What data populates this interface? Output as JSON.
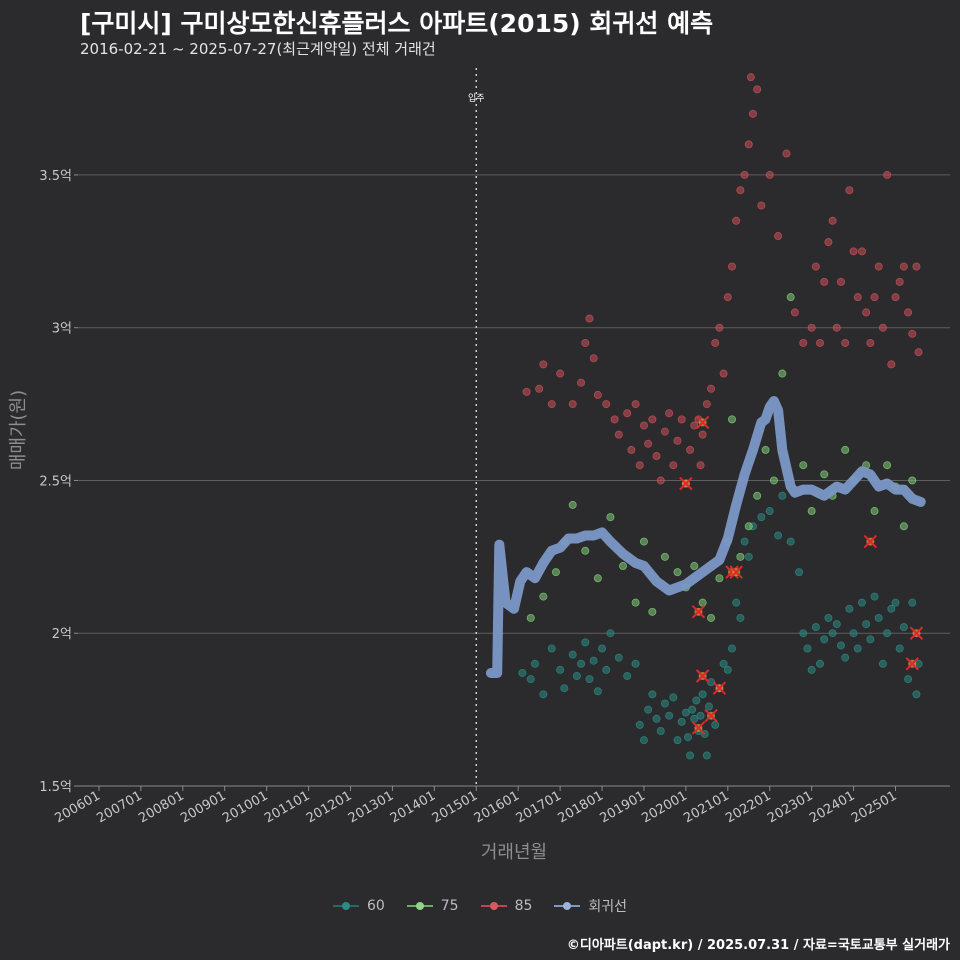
{
  "title": "[구미시] 구미상모한신휴플러스 아파트(2015) 회귀선 예측",
  "subtitle": "2016-02-21 ~ 2025-07-27(최근계약일) 전체 거래건",
  "caption": "©디아파트(dapt.kr) / 2025.07.31 / 자료=국토교통부 실거래가",
  "chart_data": {
    "type": "scatter",
    "xlabel": "거래년월",
    "ylabel": "매매가(원)",
    "x_ticks": [
      "200601",
      "200701",
      "200801",
      "200901",
      "201001",
      "201101",
      "201201",
      "201301",
      "201401",
      "201501",
      "201601",
      "201701",
      "201801",
      "201901",
      "202001",
      "202101",
      "202201",
      "202301",
      "202401",
      "202501"
    ],
    "y_ticks": [
      1.5,
      2,
      2.5,
      3,
      3.5
    ],
    "y_tick_labels": [
      "1.5억",
      "2억",
      "2.5억",
      "3억",
      "3.5억"
    ],
    "ylim": [
      1.5,
      3.85
    ],
    "xlim": [
      2005.5,
      2026.3
    ],
    "grid": "horizontal",
    "legend_position": "bottom",
    "annotation": {
      "label": "입주",
      "x": 2015.0
    },
    "colors": {
      "60": "#1e6e68",
      "75": "#5fb35a",
      "85": "#a83e45",
      "regression": "#7b98c7",
      "highlight": "#e0282c"
    },
    "series": [
      {
        "name": "60",
        "points": [
          [
            2016.1,
            1.87
          ],
          [
            2016.3,
            1.85
          ],
          [
            2016.4,
            1.9
          ],
          [
            2016.6,
            1.8
          ],
          [
            2016.8,
            1.95
          ],
          [
            2017.0,
            1.88
          ],
          [
            2017.1,
            1.82
          ],
          [
            2017.3,
            1.93
          ],
          [
            2017.4,
            1.86
          ],
          [
            2017.5,
            1.9
          ],
          [
            2017.6,
            1.97
          ],
          [
            2017.7,
            1.85
          ],
          [
            2017.8,
            1.91
          ],
          [
            2017.9,
            1.81
          ],
          [
            2018.0,
            1.95
          ],
          [
            2018.1,
            1.88
          ],
          [
            2018.2,
            2.0
          ],
          [
            2018.4,
            1.92
          ],
          [
            2018.6,
            1.86
          ],
          [
            2018.8,
            1.9
          ],
          [
            2018.9,
            1.7
          ],
          [
            2019.0,
            1.65
          ],
          [
            2019.1,
            1.75
          ],
          [
            2019.2,
            1.8
          ],
          [
            2019.3,
            1.72
          ],
          [
            2019.4,
            1.68
          ],
          [
            2019.5,
            1.77
          ],
          [
            2019.6,
            1.73
          ],
          [
            2019.7,
            1.79
          ],
          [
            2019.8,
            1.65
          ],
          [
            2019.9,
            1.71
          ],
          [
            2020.0,
            1.74
          ],
          [
            2020.05,
            1.66
          ],
          [
            2020.1,
            1.6
          ],
          [
            2020.15,
            1.75
          ],
          [
            2020.2,
            1.72
          ],
          [
            2020.25,
            1.78
          ],
          [
            2020.3,
            1.68
          ],
          [
            2020.35,
            1.73
          ],
          [
            2020.4,
            1.8
          ],
          [
            2020.45,
            1.67
          ],
          [
            2020.5,
            1.6
          ],
          [
            2020.55,
            1.76
          ],
          [
            2020.6,
            1.84
          ],
          [
            2020.7,
            1.7
          ],
          [
            2020.8,
            1.82
          ],
          [
            2020.9,
            1.9
          ],
          [
            2021.0,
            1.88
          ],
          [
            2021.1,
            1.95
          ],
          [
            2021.2,
            2.1
          ],
          [
            2021.3,
            2.05
          ],
          [
            2021.4,
            2.3
          ],
          [
            2021.5,
            2.25
          ],
          [
            2021.6,
            2.35
          ],
          [
            2021.8,
            2.38
          ],
          [
            2022.0,
            2.4
          ],
          [
            2022.2,
            2.32
          ],
          [
            2022.3,
            2.45
          ],
          [
            2022.5,
            2.3
          ],
          [
            2022.7,
            2.2
          ],
          [
            2022.8,
            2.0
          ],
          [
            2022.9,
            1.95
          ],
          [
            2023.0,
            1.88
          ],
          [
            2023.1,
            2.02
          ],
          [
            2023.2,
            1.9
          ],
          [
            2023.3,
            1.98
          ],
          [
            2023.4,
            2.05
          ],
          [
            2023.5,
            2.0
          ],
          [
            2023.6,
            2.03
          ],
          [
            2023.7,
            1.96
          ],
          [
            2023.8,
            1.92
          ],
          [
            2023.9,
            2.08
          ],
          [
            2024.0,
            2.0
          ],
          [
            2024.1,
            1.95
          ],
          [
            2024.2,
            2.1
          ],
          [
            2024.3,
            2.03
          ],
          [
            2024.4,
            1.98
          ],
          [
            2024.5,
            2.12
          ],
          [
            2024.6,
            2.05
          ],
          [
            2024.7,
            1.9
          ],
          [
            2024.8,
            2.0
          ],
          [
            2024.9,
            2.08
          ],
          [
            2025.0,
            2.1
          ],
          [
            2025.1,
            1.95
          ],
          [
            2025.2,
            2.02
          ],
          [
            2025.3,
            1.85
          ],
          [
            2025.4,
            2.1
          ],
          [
            2025.5,
            1.8
          ],
          [
            2025.55,
            1.9
          ]
        ]
      },
      {
        "name": "75",
        "points": [
          [
            2016.3,
            2.05
          ],
          [
            2016.6,
            2.12
          ],
          [
            2016.9,
            2.2
          ],
          [
            2017.1,
            2.3
          ],
          [
            2017.3,
            2.42
          ],
          [
            2017.6,
            2.27
          ],
          [
            2017.9,
            2.18
          ],
          [
            2018.2,
            2.38
          ],
          [
            2018.5,
            2.22
          ],
          [
            2018.8,
            2.1
          ],
          [
            2019.0,
            2.3
          ],
          [
            2019.2,
            2.07
          ],
          [
            2019.5,
            2.25
          ],
          [
            2019.8,
            2.2
          ],
          [
            2020.0,
            2.15
          ],
          [
            2020.2,
            2.22
          ],
          [
            2020.4,
            2.1
          ],
          [
            2020.6,
            2.05
          ],
          [
            2020.8,
            2.18
          ],
          [
            2021.0,
            2.3
          ],
          [
            2021.1,
            2.7
          ],
          [
            2021.3,
            2.25
          ],
          [
            2021.5,
            2.35
          ],
          [
            2021.7,
            2.45
          ],
          [
            2021.9,
            2.6
          ],
          [
            2022.1,
            2.5
          ],
          [
            2022.3,
            2.85
          ],
          [
            2022.5,
            3.1
          ],
          [
            2022.8,
            2.55
          ],
          [
            2023.0,
            2.4
          ],
          [
            2023.3,
            2.52
          ],
          [
            2023.5,
            2.45
          ],
          [
            2023.8,
            2.6
          ],
          [
            2024.0,
            2.5
          ],
          [
            2024.3,
            2.55
          ],
          [
            2024.5,
            2.4
          ],
          [
            2024.8,
            2.55
          ],
          [
            2025.0,
            2.48
          ],
          [
            2025.2,
            2.35
          ],
          [
            2025.4,
            2.5
          ]
        ]
      },
      {
        "name": "85",
        "points": [
          [
            2016.2,
            2.79
          ],
          [
            2016.5,
            2.8
          ],
          [
            2016.6,
            2.88
          ],
          [
            2016.8,
            2.75
          ],
          [
            2017.0,
            2.85
          ],
          [
            2017.3,
            2.75
          ],
          [
            2017.5,
            2.82
          ],
          [
            2017.6,
            2.95
          ],
          [
            2017.7,
            3.03
          ],
          [
            2017.8,
            2.9
          ],
          [
            2017.9,
            2.78
          ],
          [
            2018.1,
            2.75
          ],
          [
            2018.3,
            2.7
          ],
          [
            2018.4,
            2.65
          ],
          [
            2018.6,
            2.72
          ],
          [
            2018.7,
            2.6
          ],
          [
            2018.8,
            2.75
          ],
          [
            2018.9,
            2.55
          ],
          [
            2019.0,
            2.68
          ],
          [
            2019.1,
            2.62
          ],
          [
            2019.2,
            2.7
          ],
          [
            2019.3,
            2.58
          ],
          [
            2019.4,
            2.5
          ],
          [
            2019.5,
            2.66
          ],
          [
            2019.6,
            2.72
          ],
          [
            2019.7,
            2.55
          ],
          [
            2019.8,
            2.63
          ],
          [
            2019.9,
            2.7
          ],
          [
            2020.0,
            2.49
          ],
          [
            2020.1,
            2.6
          ],
          [
            2020.2,
            2.68
          ],
          [
            2020.3,
            2.7
          ],
          [
            2020.35,
            2.55
          ],
          [
            2020.4,
            2.65
          ],
          [
            2020.5,
            2.75
          ],
          [
            2020.6,
            2.8
          ],
          [
            2020.7,
            2.95
          ],
          [
            2020.8,
            3.0
          ],
          [
            2020.9,
            2.85
          ],
          [
            2021.0,
            3.1
          ],
          [
            2021.1,
            3.2
          ],
          [
            2021.2,
            3.35
          ],
          [
            2021.3,
            3.45
          ],
          [
            2021.4,
            3.5
          ],
          [
            2021.5,
            3.6
          ],
          [
            2021.55,
            3.82
          ],
          [
            2021.6,
            3.7
          ],
          [
            2021.7,
            3.78
          ],
          [
            2021.8,
            3.4
          ],
          [
            2022.0,
            3.5
          ],
          [
            2022.2,
            3.3
          ],
          [
            2022.4,
            3.57
          ],
          [
            2022.6,
            3.05
          ],
          [
            2022.8,
            2.95
          ],
          [
            2023.0,
            3.0
          ],
          [
            2023.1,
            3.2
          ],
          [
            2023.2,
            2.95
          ],
          [
            2023.3,
            3.15
          ],
          [
            2023.4,
            3.28
          ],
          [
            2023.5,
            3.35
          ],
          [
            2023.6,
            3.0
          ],
          [
            2023.7,
            3.15
          ],
          [
            2023.8,
            2.95
          ],
          [
            2023.9,
            3.45
          ],
          [
            2024.0,
            3.25
          ],
          [
            2024.1,
            3.1
          ],
          [
            2024.2,
            3.25
          ],
          [
            2024.3,
            3.05
          ],
          [
            2024.4,
            2.95
          ],
          [
            2024.5,
            3.1
          ],
          [
            2024.6,
            3.2
          ],
          [
            2024.7,
            3.0
          ],
          [
            2024.8,
            3.5
          ],
          [
            2024.9,
            2.88
          ],
          [
            2025.0,
            3.1
          ],
          [
            2025.1,
            3.15
          ],
          [
            2025.2,
            3.2
          ],
          [
            2025.3,
            3.05
          ],
          [
            2025.4,
            2.98
          ],
          [
            2025.5,
            3.2
          ],
          [
            2025.55,
            2.92
          ]
        ]
      }
    ],
    "highlights": [
      [
        2020.0,
        2.49
      ],
      [
        2020.4,
        2.69
      ],
      [
        2020.3,
        2.07
      ],
      [
        2020.4,
        1.86
      ],
      [
        2020.6,
        1.73
      ],
      [
        2020.8,
        1.82
      ],
      [
        2021.1,
        2.2
      ],
      [
        2021.2,
        2.2
      ],
      [
        2024.4,
        2.3
      ],
      [
        2025.5,
        2.0
      ],
      [
        2025.4,
        1.9
      ],
      [
        2020.3,
        1.69
      ]
    ],
    "regression": {
      "name": "회귀선",
      "x": [
        2015.35,
        2015.5,
        2015.55,
        2015.7,
        2015.9,
        2016.05,
        2016.2,
        2016.4,
        2016.6,
        2016.8,
        2017.0,
        2017.2,
        2017.4,
        2017.6,
        2017.8,
        2018.0,
        2018.2,
        2018.5,
        2018.8,
        2019.0,
        2019.3,
        2019.6,
        2019.8,
        2020.0,
        2020.2,
        2020.5,
        2020.8,
        2021.0,
        2021.2,
        2021.4,
        2021.6,
        2021.8,
        2021.9,
        2022.0,
        2022.1,
        2022.2,
        2022.3,
        2022.5,
        2022.6,
        2022.8,
        2023.0,
        2023.3,
        2023.6,
        2023.8,
        2024.0,
        2024.2,
        2024.4,
        2024.6,
        2024.8,
        2025.0,
        2025.2,
        2025.4,
        2025.6
      ],
      "y": [
        1.87,
        1.87,
        2.29,
        2.1,
        2.08,
        2.17,
        2.2,
        2.18,
        2.23,
        2.27,
        2.28,
        2.31,
        2.31,
        2.32,
        2.32,
        2.33,
        2.3,
        2.26,
        2.23,
        2.22,
        2.17,
        2.14,
        2.15,
        2.16,
        2.18,
        2.21,
        2.24,
        2.31,
        2.42,
        2.52,
        2.6,
        2.69,
        2.7,
        2.74,
        2.76,
        2.73,
        2.6,
        2.48,
        2.46,
        2.47,
        2.47,
        2.45,
        2.48,
        2.47,
        2.5,
        2.53,
        2.52,
        2.48,
        2.49,
        2.47,
        2.47,
        2.44,
        2.43
      ]
    }
  }
}
